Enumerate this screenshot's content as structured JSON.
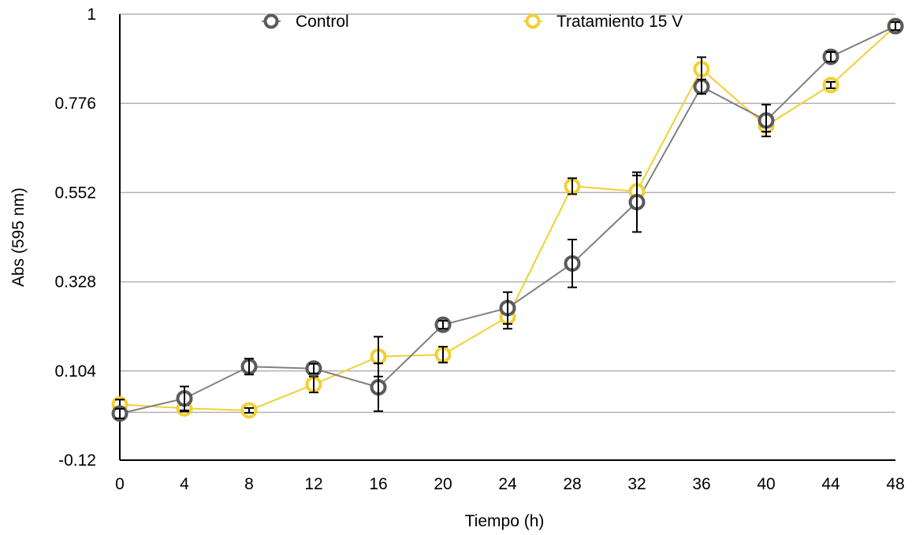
{
  "chart_data": {
    "type": "line",
    "xlabel": "Tiempo (h)",
    "ylabel": "Abs (595 nm)",
    "x": [
      0,
      4,
      8,
      12,
      16,
      20,
      24,
      28,
      32,
      36,
      40,
      44,
      48
    ],
    "x_tick_labels": [
      "0",
      "4",
      "8",
      "12",
      "16",
      "20",
      "24",
      "28",
      "32",
      "36",
      "40",
      "44",
      "48"
    ],
    "y_tick_labels": [
      "1",
      "0.776",
      "0.552",
      "0.328",
      "0.104",
      "-0.12"
    ],
    "ylim": [
      -0.12,
      1
    ],
    "y_gridlines": [
      0.776,
      0.552,
      0.328,
      0.104,
      0.0
    ],
    "grid": true,
    "legend_position": "top",
    "series": [
      {
        "name": "Control",
        "color": "#808080",
        "marker": "open-circle",
        "values": [
          -0.003,
          0.035,
          0.115,
          0.11,
          0.063,
          0.22,
          0.262,
          0.374,
          0.528,
          0.818,
          0.733,
          0.893,
          0.97
        ],
        "errors": [
          0.012,
          0.03,
          0.02,
          0.012,
          0.06,
          0.01,
          0.04,
          0.06,
          0.075,
          0.018,
          0.04,
          0.012,
          0.01
        ]
      },
      {
        "name": "Tratamiento 15 V",
        "color": "#f1d033",
        "marker": "open-circle",
        "values": [
          0.02,
          0.01,
          0.005,
          0.07,
          0.14,
          0.145,
          0.24,
          0.568,
          0.555,
          0.862,
          0.72,
          0.822,
          0.97
        ],
        "errors": [
          0.012,
          0.008,
          0.006,
          0.02,
          0.05,
          0.02,
          0.03,
          0.02,
          0.04,
          0.03,
          0.015,
          0.008,
          0.008
        ]
      }
    ]
  }
}
